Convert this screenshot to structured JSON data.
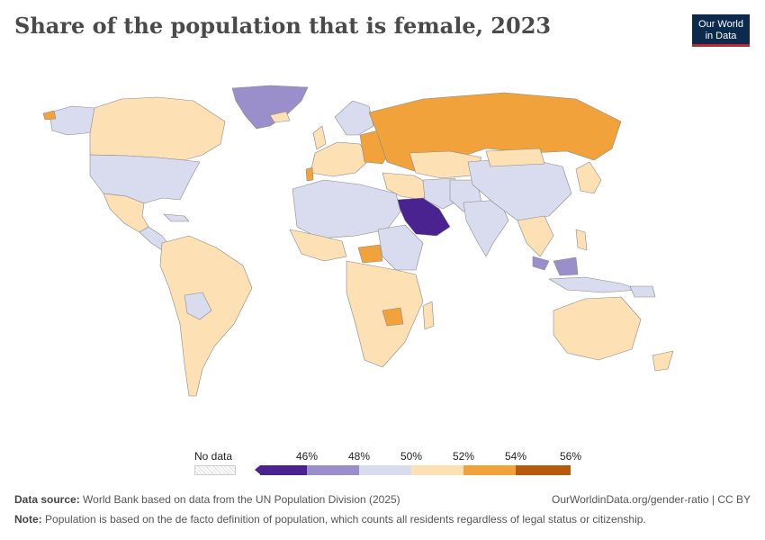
{
  "title": "Share of the population that is female, 2023",
  "logo": {
    "line1": "Our World",
    "line2": "in Data"
  },
  "legend": {
    "no_data_label": "No data",
    "ticks": [
      "46%",
      "48%",
      "50%",
      "52%",
      "54%",
      "56%"
    ],
    "bins": [
      {
        "color": "#4b2390"
      },
      {
        "color": "#9a8fcb"
      },
      {
        "color": "#d9dbee"
      },
      {
        "color": "#fde0b4"
      },
      {
        "color": "#f2a23b"
      },
      {
        "color": "#b85a0b"
      }
    ]
  },
  "colors": {
    "below_46": "#5b2a8c",
    "46_48": "#9a8fcb",
    "48_50": "#d9dbee",
    "50_52": "#fde0b4",
    "52_54": "#f2a23b",
    "54_56": "#b85a0b",
    "border": "#888888"
  },
  "footer": {
    "source_label": "Data source:",
    "source_text": "World Bank based on data from the UN Population Division (2025)",
    "url": "OurWorldinData.org/gender-ratio | CC BY",
    "note_label": "Note:",
    "note_text": "Population is based on the de facto definition of population, which counts all residents regardless of legal status or citizenship."
  }
}
